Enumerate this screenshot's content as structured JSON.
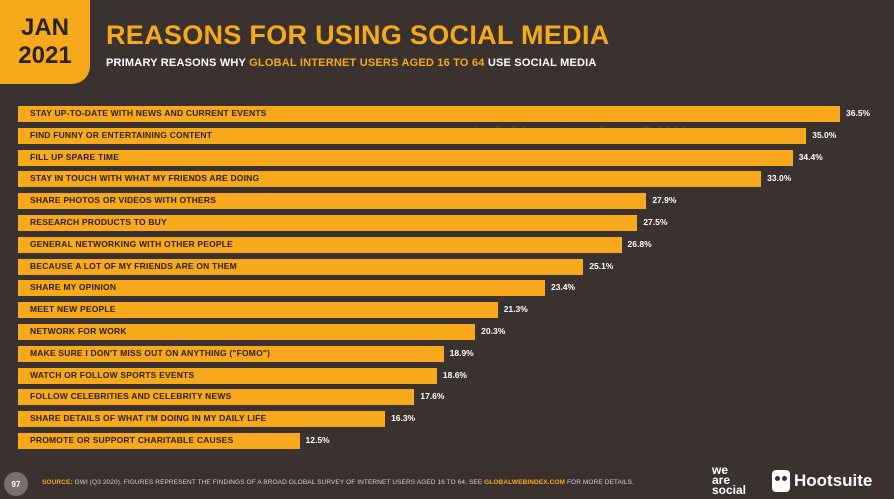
{
  "header": {
    "month": "JAN",
    "year": "2021",
    "title": "REASONS FOR USING SOCIAL MEDIA",
    "subtitle_pre": "PRIMARY REASONS WHY ",
    "subtitle_hl": "GLOBAL INTERNET USERS AGED 16 TO 64",
    "subtitle_post": " USE SOCIAL MEDIA"
  },
  "watermark": "we are social  Hootsuite  GWI.",
  "chart_data": {
    "type": "bar",
    "orientation": "horizontal",
    "categories": [
      "STAY UP-TO-DATE WITH NEWS AND CURRENT EVENTS",
      "FIND FUNNY OR ENTERTAINING CONTENT",
      "FILL UP SPARE TIME",
      "STAY IN TOUCH WITH WHAT MY FRIENDS ARE DOING",
      "SHARE PHOTOS OR VIDEOS WITH OTHERS",
      "RESEARCH PRODUCTS TO BUY",
      "GENERAL NETWORKING WITH OTHER PEOPLE",
      "BECAUSE A LOT OF MY FRIENDS ARE ON THEM",
      "SHARE MY OPINION",
      "MEET NEW PEOPLE",
      "NETWORK FOR WORK",
      "MAKE SURE I DON'T MISS OUT ON ANYTHING (\"FOMO\")",
      "WATCH OR FOLLOW SPORTS EVENTS",
      "FOLLOW CELEBRITIES AND CELEBRITY NEWS",
      "SHARE DETAILS OF WHAT I'M DOING IN MY DAILY LIFE",
      "PROMOTE OR SUPPORT CHARITABLE CAUSES"
    ],
    "values": [
      36.5,
      35.0,
      34.4,
      33.0,
      27.9,
      27.5,
      26.8,
      25.1,
      23.4,
      21.3,
      20.3,
      18.9,
      18.6,
      17.6,
      16.3,
      12.5
    ],
    "value_labels": [
      "36.5%",
      "35.0%",
      "34.4%",
      "33.0%",
      "27.9%",
      "27.5%",
      "26.8%",
      "25.1%",
      "23.4%",
      "21.3%",
      "20.3%",
      "18.9%",
      "18.6%",
      "17.6%",
      "16.3%",
      "12.5%"
    ],
    "xlim": [
      0,
      36.5
    ],
    "bar_color": "#f7a81b",
    "grid": false,
    "legend": "none"
  },
  "footer": {
    "page_number": "97",
    "source_head": "SOURCE:",
    "source_text": " GWI (Q3 2020). FIGURES REPRESENT THE FINDINGS OF A BROAD GLOBAL SURVEY OF INTERNET USERS AGED 16 TO 64. SEE ",
    "source_link": "GLOBALWEBINDEX.COM",
    "source_tail": " FOR MORE DETAILS.",
    "logo_we": "we",
    "logo_are": "are",
    "logo_social": "social",
    "logo_hootsuite": "Hootsuite"
  },
  "colors": {
    "accent": "#f7a81b",
    "background": "#3a3230"
  }
}
